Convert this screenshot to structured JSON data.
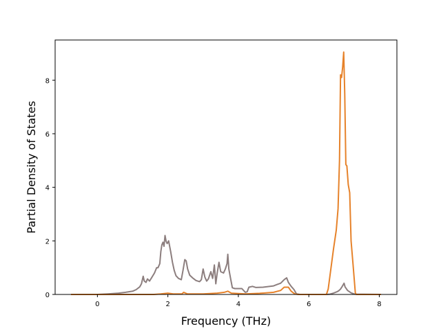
{
  "chart_data": {
    "type": "line",
    "title": "",
    "xlabel": "Frequency (THz)",
    "ylabel": "Partial Density of States",
    "xlim": [
      -1.2,
      8.5
    ],
    "ylim": [
      0,
      9.5
    ],
    "xticks": [
      0,
      2,
      4,
      6,
      8
    ],
    "yticks": [
      0,
      2,
      4,
      6,
      8
    ],
    "grid": false,
    "series": [
      {
        "color": "#8c7e7e",
        "points": [
          [
            -0.75,
            0
          ],
          [
            0.0,
            0.0
          ],
          [
            0.3,
            0.02
          ],
          [
            0.6,
            0.05
          ],
          [
            0.8,
            0.08
          ],
          [
            1.0,
            0.12
          ],
          [
            1.1,
            0.18
          ],
          [
            1.2,
            0.28
          ],
          [
            1.25,
            0.4
          ],
          [
            1.3,
            0.68
          ],
          [
            1.33,
            0.5
          ],
          [
            1.38,
            0.45
          ],
          [
            1.42,
            0.58
          ],
          [
            1.48,
            0.5
          ],
          [
            1.55,
            0.65
          ],
          [
            1.62,
            0.8
          ],
          [
            1.68,
            1.0
          ],
          [
            1.72,
            1.0
          ],
          [
            1.77,
            1.15
          ],
          [
            1.8,
            1.6
          ],
          [
            1.83,
            1.85
          ],
          [
            1.86,
            1.95
          ],
          [
            1.89,
            1.8
          ],
          [
            1.92,
            2.2
          ],
          [
            1.95,
            1.98
          ],
          [
            1.98,
            1.9
          ],
          [
            2.02,
            2.0
          ],
          [
            2.08,
            1.6
          ],
          [
            2.13,
            1.2
          ],
          [
            2.18,
            0.9
          ],
          [
            2.23,
            0.7
          ],
          [
            2.3,
            0.6
          ],
          [
            2.38,
            0.55
          ],
          [
            2.43,
            0.9
          ],
          [
            2.48,
            1.3
          ],
          [
            2.52,
            1.25
          ],
          [
            2.56,
            0.95
          ],
          [
            2.62,
            0.72
          ],
          [
            2.7,
            0.62
          ],
          [
            2.8,
            0.52
          ],
          [
            2.9,
            0.48
          ],
          [
            2.95,
            0.55
          ],
          [
            3.0,
            0.95
          ],
          [
            3.05,
            0.65
          ],
          [
            3.1,
            0.5
          ],
          [
            3.15,
            0.58
          ],
          [
            3.22,
            0.85
          ],
          [
            3.27,
            0.6
          ],
          [
            3.32,
            1.1
          ],
          [
            3.36,
            0.4
          ],
          [
            3.4,
            0.8
          ],
          [
            3.45,
            1.2
          ],
          [
            3.5,
            0.85
          ],
          [
            3.58,
            0.8
          ],
          [
            3.63,
            0.95
          ],
          [
            3.68,
            1.15
          ],
          [
            3.7,
            1.5
          ],
          [
            3.73,
            0.95
          ],
          [
            3.78,
            0.6
          ],
          [
            3.83,
            0.25
          ],
          [
            3.9,
            0.22
          ],
          [
            4.0,
            0.22
          ],
          [
            4.1,
            0.22
          ],
          [
            4.2,
            0.08
          ],
          [
            4.25,
            0.1
          ],
          [
            4.3,
            0.27
          ],
          [
            4.4,
            0.3
          ],
          [
            4.5,
            0.26
          ],
          [
            4.7,
            0.27
          ],
          [
            4.9,
            0.3
          ],
          [
            5.0,
            0.32
          ],
          [
            5.1,
            0.37
          ],
          [
            5.2,
            0.42
          ],
          [
            5.3,
            0.55
          ],
          [
            5.37,
            0.62
          ],
          [
            5.42,
            0.45
          ],
          [
            5.5,
            0.3
          ],
          [
            5.58,
            0.18
          ],
          [
            5.65,
            0.02
          ],
          [
            5.75,
            0
          ],
          [
            6.5,
            0
          ],
          [
            6.6,
            0.01
          ],
          [
            6.7,
            0.05
          ],
          [
            6.8,
            0.1
          ],
          [
            6.85,
            0.14
          ],
          [
            6.9,
            0.2
          ],
          [
            6.95,
            0.3
          ],
          [
            7.0,
            0.42
          ],
          [
            7.03,
            0.28
          ],
          [
            7.1,
            0.15
          ],
          [
            7.2,
            0.06
          ],
          [
            7.3,
            0.01
          ],
          [
            8.05,
            0
          ]
        ]
      },
      {
        "color": "#e6822a",
        "points": [
          [
            -0.75,
            0
          ],
          [
            1.6,
            0
          ],
          [
            1.8,
            0.02
          ],
          [
            2.0,
            0.05
          ],
          [
            2.15,
            0.02
          ],
          [
            2.4,
            0.02
          ],
          [
            2.45,
            0.08
          ],
          [
            2.55,
            0.02
          ],
          [
            3.0,
            0.02
          ],
          [
            3.4,
            0.05
          ],
          [
            3.6,
            0.08
          ],
          [
            3.7,
            0.12
          ],
          [
            3.8,
            0.05
          ],
          [
            4.2,
            0.02
          ],
          [
            4.6,
            0.04
          ],
          [
            5.0,
            0.08
          ],
          [
            5.2,
            0.15
          ],
          [
            5.3,
            0.27
          ],
          [
            5.42,
            0.27
          ],
          [
            5.5,
            0.12
          ],
          [
            5.6,
            0.02
          ],
          [
            5.7,
            0
          ],
          [
            6.5,
            0
          ],
          [
            6.55,
            0.2
          ],
          [
            6.62,
            0.9
          ],
          [
            6.7,
            1.7
          ],
          [
            6.78,
            2.4
          ],
          [
            6.83,
            3.2
          ],
          [
            6.87,
            5.0
          ],
          [
            6.9,
            8.2
          ],
          [
            6.93,
            8.1
          ],
          [
            6.96,
            8.5
          ],
          [
            6.99,
            9.05
          ],
          [
            7.02,
            7.5
          ],
          [
            7.05,
            4.85
          ],
          [
            7.08,
            4.8
          ],
          [
            7.12,
            4.1
          ],
          [
            7.16,
            3.8
          ],
          [
            7.2,
            2.0
          ],
          [
            7.25,
            1.2
          ],
          [
            7.32,
            0.05
          ],
          [
            7.35,
            0
          ],
          [
            8.05,
            0
          ]
        ]
      }
    ]
  }
}
